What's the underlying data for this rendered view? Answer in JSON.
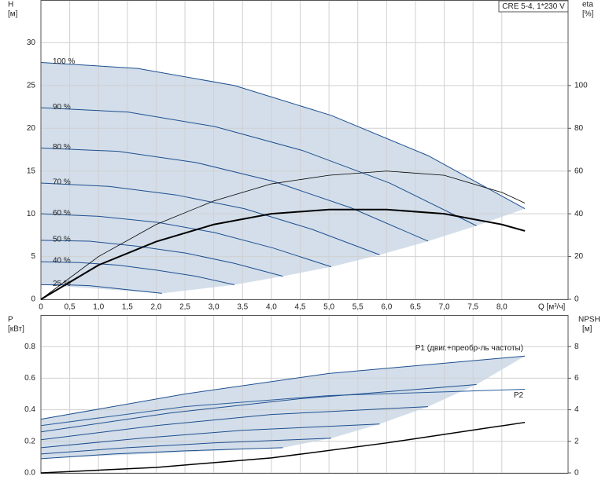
{
  "chart_data": [
    {
      "type": "line",
      "annotation": "CRE 5-4, 1*230 V",
      "ylabel": [
        "H",
        "[м]"
      ],
      "y2label": [
        "eta",
        "[%]"
      ],
      "xlabel": "Q [м³/ч]",
      "xlim": [
        0,
        9.15
      ],
      "ylim": [
        0,
        35
      ],
      "y2lim": [
        0,
        140
      ],
      "grid": true,
      "area_shading": true,
      "xticks": [
        0,
        {
          "value": 0.5,
          "label": "0,5"
        },
        {
          "value": 1.0,
          "label": "1,0"
        },
        {
          "value": 1.5,
          "label": "1,5"
        },
        {
          "value": 2.0,
          "label": "2,0"
        },
        {
          "value": 2.5,
          "label": "2,5"
        },
        {
          "value": 3.0,
          "label": "3,0"
        },
        {
          "value": 3.5,
          "label": "3,5"
        },
        {
          "value": 4.0,
          "label": "4,0"
        },
        {
          "value": 4.5,
          "label": "4,5"
        },
        {
          "value": 5.0,
          "label": "5,0"
        },
        {
          "value": 5.5,
          "label": "5,5"
        },
        {
          "value": 6.0,
          "label": "6,0"
        },
        {
          "value": 6.5,
          "label": "6,5"
        },
        {
          "value": 7.0,
          "label": "7,0"
        },
        {
          "value": 7.5,
          "label": "7,5"
        },
        {
          "value": 8.0,
          "label": "8,0"
        }
      ],
      "yticks": [
        0,
        5,
        10,
        15,
        20,
        25,
        30
      ],
      "y2ticks": [
        0,
        20,
        40,
        60,
        80,
        100
      ],
      "series": [
        {
          "name": "100 %",
          "color": "#1e4f8f",
          "width": 1,
          "x": [
            0,
            1.68,
            3.36,
            5.04,
            6.72,
            8.4
          ],
          "values": [
            27.7,
            27.0,
            25.0,
            21.5,
            16.8,
            10.6
          ]
        },
        {
          "name": "90 %",
          "color": "#1e4f8f",
          "width": 1,
          "x": [
            0,
            1.51,
            3.02,
            4.54,
            6.05,
            7.56
          ],
          "values": [
            22.4,
            21.9,
            20.2,
            17.4,
            13.6,
            8.6
          ]
        },
        {
          "name": "80 %",
          "color": "#1e4f8f",
          "width": 1,
          "x": [
            0,
            1.34,
            2.69,
            4.03,
            5.38,
            6.72
          ],
          "values": [
            17.7,
            17.3,
            16.0,
            13.8,
            10.7,
            6.8
          ]
        },
        {
          "name": "70 %",
          "color": "#1e4f8f",
          "width": 1,
          "x": [
            0,
            1.18,
            2.35,
            3.53,
            4.7,
            5.88
          ],
          "values": [
            13.6,
            13.2,
            12.2,
            10.6,
            8.2,
            5.2
          ]
        },
        {
          "name": "60 %",
          "color": "#1e4f8f",
          "width": 1,
          "x": [
            0,
            1.01,
            2.02,
            3.02,
            4.03,
            5.04
          ],
          "values": [
            10.0,
            9.7,
            9.0,
            7.8,
            6.0,
            3.8
          ]
        },
        {
          "name": "50 %",
          "color": "#1e4f8f",
          "width": 1,
          "x": [
            0,
            0.84,
            1.68,
            2.52,
            3.36,
            4.2
          ],
          "values": [
            6.9,
            6.8,
            6.2,
            5.4,
            4.2,
            2.7
          ]
        },
        {
          "name": "40 %",
          "color": "#1e4f8f",
          "width": 1,
          "x": [
            0,
            0.67,
            1.34,
            2.02,
            2.69,
            3.36
          ],
          "values": [
            4.4,
            4.3,
            4.0,
            3.4,
            2.7,
            1.7
          ]
        },
        {
          "name": "25 %",
          "color": "#1e4f8f",
          "width": 1,
          "x": [
            0,
            0.42,
            0.84,
            1.26,
            1.68,
            2.1
          ],
          "values": [
            1.7,
            1.7,
            1.6,
            1.3,
            1.0,
            0.7
          ]
        },
        {
          "color": "#000000",
          "width": 0.8,
          "axis": "y2",
          "x": [
            0,
            1,
            2,
            3,
            4,
            5,
            6,
            7,
            8,
            8.4
          ],
          "values": [
            0,
            20,
            35,
            46,
            54,
            58,
            60,
            58,
            50,
            45
          ]
        },
        {
          "color": "#000000",
          "width": 2,
          "axis": "y2",
          "x": [
            0,
            1,
            2,
            3,
            4,
            5,
            6,
            7,
            8,
            8.4
          ],
          "values": [
            0,
            16,
            27,
            35,
            40,
            42,
            42,
            40,
            35,
            32
          ]
        }
      ]
    },
    {
      "type": "line",
      "ylabel": [
        "P",
        "[кВт]"
      ],
      "y2label": [
        "NPSH",
        "[м]"
      ],
      "xlim": [
        0,
        9.15
      ],
      "ylim": [
        0,
        1.0
      ],
      "y2lim": [
        0,
        10
      ],
      "grid": true,
      "area_shading": true,
      "yticks": [
        {
          "value": 0,
          "label": "0.0"
        },
        0.2,
        0.4,
        0.6,
        0.8
      ],
      "y2ticks": [
        0,
        2,
        4,
        6,
        8
      ],
      "series": [
        {
          "name": "P1 (двиг.+преобр-ль частоты)",
          "color": "#1e4f8f",
          "width": 1,
          "x": [
            0,
            2.5,
            5,
            8.4
          ],
          "values": [
            0.34,
            0.5,
            0.63,
            0.74
          ]
        },
        {
          "name": "P2",
          "color": "#2a5c9a",
          "width": 1,
          "x": [
            0,
            2.5,
            5,
            8.4
          ],
          "values": [
            0.3,
            0.42,
            0.49,
            0.53
          ]
        },
        {
          "color": "#1e4f8f",
          "width": 1,
          "x": [
            0,
            2.25,
            4.5,
            7.56
          ],
          "values": [
            0.26,
            0.38,
            0.47,
            0.56
          ]
        },
        {
          "color": "#1e4f8f",
          "width": 1,
          "x": [
            0,
            2,
            4,
            6.72
          ],
          "values": [
            0.21,
            0.3,
            0.37,
            0.42
          ]
        },
        {
          "color": "#1e4f8f",
          "width": 1,
          "x": [
            0,
            1.75,
            3.5,
            5.88
          ],
          "values": [
            0.16,
            0.22,
            0.27,
            0.31
          ]
        },
        {
          "color": "#1e4f8f",
          "width": 1,
          "x": [
            0,
            1.5,
            3,
            5.04
          ],
          "values": [
            0.12,
            0.16,
            0.19,
            0.22
          ]
        },
        {
          "color": "#1e4f8f",
          "width": 1,
          "x": [
            0,
            1.25,
            2.5,
            4.2
          ],
          "values": [
            0.09,
            0.12,
            0.14,
            0.16
          ]
        },
        {
          "color": "#000000",
          "width": 1.5,
          "axis": "y2",
          "x": [
            0,
            2,
            4,
            6,
            8.4
          ],
          "values": [
            0,
            0.35,
            0.95,
            1.9,
            3.2
          ]
        }
      ]
    }
  ]
}
